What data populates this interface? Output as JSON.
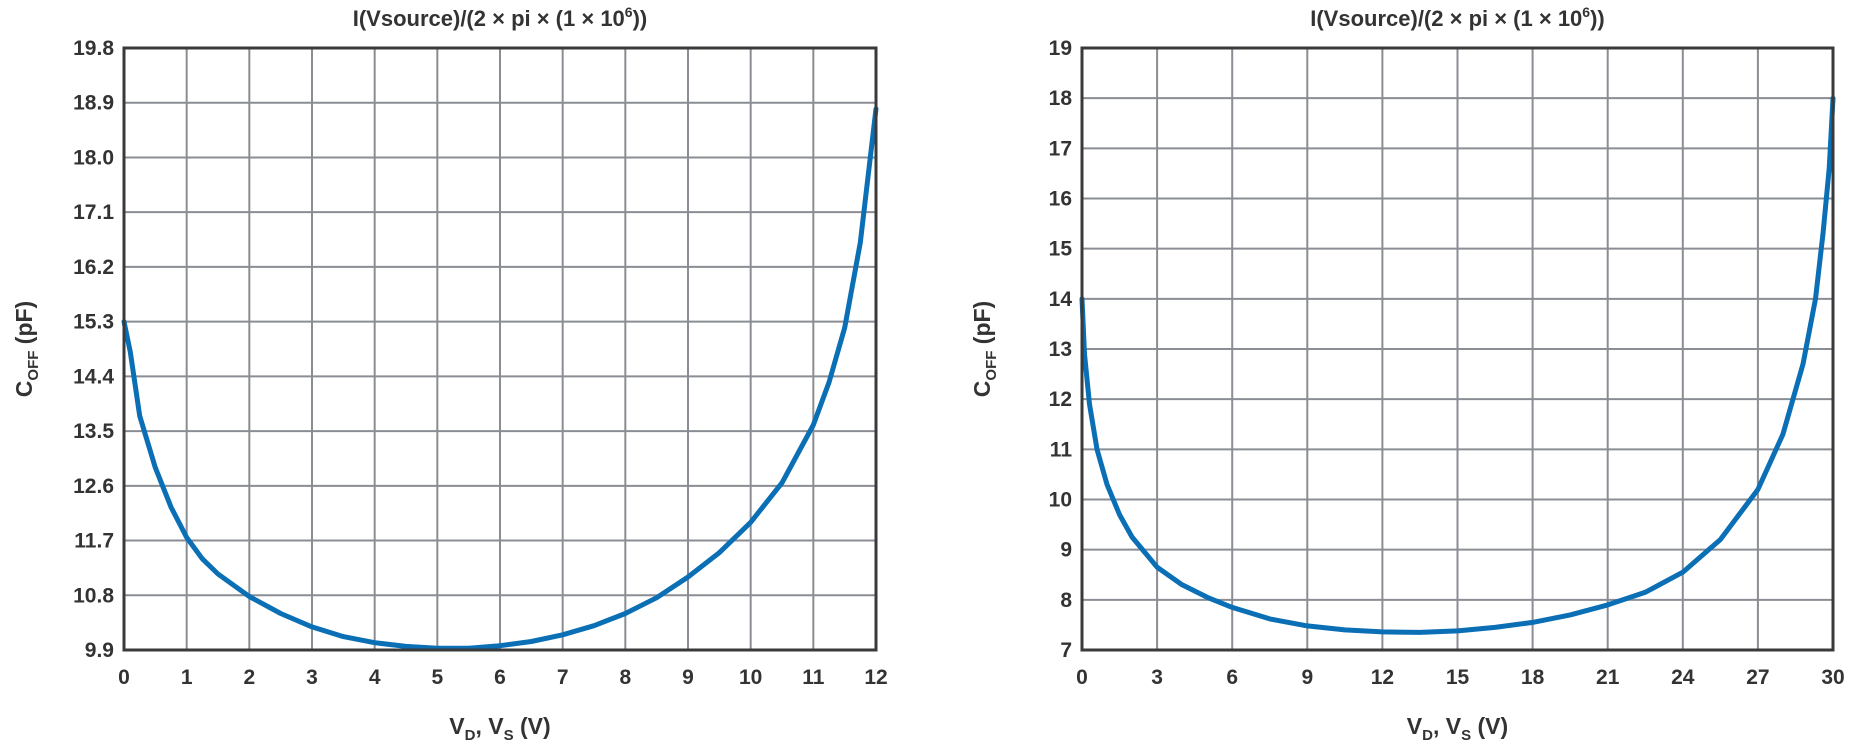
{
  "colors": {
    "curve": "#0a6fb5",
    "grid": "#8a8d93",
    "frame": "#3a3a3a",
    "text": "#333333"
  },
  "chart_data": [
    {
      "type": "line",
      "title": {
        "base": "I(Vsource)/(2 × pi × (1 × 10",
        "sup": "6",
        "tail": "))"
      },
      "ylabel": {
        "main": "C",
        "sub": "OFF",
        "rest": " (pF)"
      },
      "xlabel": {
        "v1": "V",
        "s1": "D",
        "mid": ", V",
        "s2": "S",
        "rest": " (V)"
      },
      "xlim": [
        0,
        12
      ],
      "ylim": [
        9.9,
        19.8
      ],
      "xticks": [
        0,
        1,
        2,
        3,
        4,
        5,
        6,
        7,
        8,
        9,
        10,
        11,
        12
      ],
      "yticks": [
        9.9,
        10.8,
        11.7,
        12.6,
        13.5,
        14.4,
        15.3,
        16.2,
        17.1,
        18.0,
        18.9,
        19.8
      ],
      "ytick_labels": [
        "9.9",
        "10.8",
        "11.7",
        "12.6",
        "13.5",
        "14.4",
        "15.3",
        "16.2",
        "17.1",
        "18.0",
        "18.9",
        "19.8"
      ],
      "grid": true,
      "series": [
        {
          "x": [
            0,
            0.1,
            0.25,
            0.5,
            0.75,
            1.0,
            1.25,
            1.5,
            2.0,
            2.5,
            3.0,
            3.5,
            4.0,
            4.5,
            5.0,
            5.5,
            6.0,
            6.5,
            7.0,
            7.5,
            8.0,
            8.5,
            9.0,
            9.5,
            10.0,
            10.5,
            11.0,
            11.25,
            11.5,
            11.75,
            12.0
          ],
          "y": [
            15.3,
            14.8,
            13.75,
            12.9,
            12.25,
            11.75,
            11.4,
            11.15,
            10.78,
            10.5,
            10.28,
            10.12,
            10.02,
            9.96,
            9.93,
            9.93,
            9.97,
            10.04,
            10.15,
            10.3,
            10.5,
            10.76,
            11.1,
            11.5,
            12.0,
            12.65,
            13.6,
            14.3,
            15.2,
            16.6,
            18.8
          ]
        }
      ]
    },
    {
      "type": "line",
      "title": {
        "base": "I(Vsource)/(2 × pi × (1 × 10",
        "sup": "6",
        "tail": "))"
      },
      "ylabel": {
        "main": "C",
        "sub": "OFF",
        "rest": " (pF)"
      },
      "xlabel": {
        "v1": "V",
        "s1": "D",
        "mid": ", V",
        "s2": "S",
        "rest": " (V)"
      },
      "xlim": [
        0,
        30
      ],
      "ylim": [
        7,
        19
      ],
      "xticks": [
        0,
        3,
        6,
        9,
        12,
        15,
        18,
        21,
        24,
        27,
        30
      ],
      "yticks": [
        7,
        8,
        9,
        10,
        11,
        12,
        13,
        14,
        15,
        16,
        17,
        18,
        19
      ],
      "ytick_labels": [
        "7",
        "8",
        "9",
        "10",
        "11",
        "12",
        "13",
        "14",
        "15",
        "16",
        "17",
        "18",
        "19"
      ],
      "grid": true,
      "series": [
        {
          "x": [
            0,
            0.1,
            0.3,
            0.6,
            1.0,
            1.5,
            2.0,
            3.0,
            4.0,
            5.0,
            6.0,
            7.5,
            9.0,
            10.5,
            12.0,
            13.5,
            15.0,
            16.5,
            18.0,
            19.5,
            21.0,
            22.5,
            24.0,
            25.5,
            27.0,
            28.0,
            28.8,
            29.3,
            29.6,
            29.85,
            30.0
          ],
          "y": [
            14.0,
            12.9,
            11.9,
            11.0,
            10.3,
            9.7,
            9.25,
            8.65,
            8.3,
            8.05,
            7.85,
            7.62,
            7.48,
            7.4,
            7.36,
            7.35,
            7.38,
            7.45,
            7.55,
            7.7,
            7.9,
            8.15,
            8.55,
            9.2,
            10.2,
            11.3,
            12.7,
            14.0,
            15.3,
            16.6,
            18.0
          ]
        }
      ]
    }
  ]
}
